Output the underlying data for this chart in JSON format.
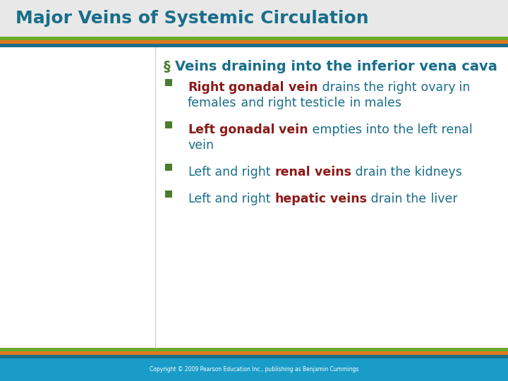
{
  "title": "Major Veins of Systemic Circulation",
  "title_color": "#1a6e8a",
  "title_fontsize": 18,
  "subtitle": "Veins draining into the inferior vena cava",
  "subtitle_color": "#4a7c2f",
  "bullet_color": "#4a7c2f",
  "background_color": "#ffffff",
  "title_bg_color": "#e8e8e8",
  "green_bar_color": "#6aaa2a",
  "orange_bar_color": "#e07820",
  "teal_bar_color": "#1a6e8a",
  "footer_bg": "#1a9cc8",
  "footer_text": "Copyright © 2009 Pearson Education Inc., publishing as Benjamin Cummings",
  "footer_text_color": "#ffffff",
  "bullet_items": [
    {
      "parts": [
        {
          "text": "Right gonadal vein",
          "color": "#8b1a1a",
          "bold": true
        },
        {
          "text": " drains the right ovary in females and right testicle in males",
          "color": "#1a6e8a",
          "bold": false
        }
      ]
    },
    {
      "parts": [
        {
          "text": "Left gonadal vein",
          "color": "#8b1a1a",
          "bold": true
        },
        {
          "text": " empties into the left renal vein",
          "color": "#1a6e8a",
          "bold": false
        }
      ]
    },
    {
      "parts": [
        {
          "text": "Left and right ",
          "color": "#1a6e8a",
          "bold": false
        },
        {
          "text": "renal veins",
          "color": "#8b1a1a",
          "bold": true
        },
        {
          "text": " drain the kidneys",
          "color": "#1a6e8a",
          "bold": false
        }
      ]
    },
    {
      "parts": [
        {
          "text": "Left and right ",
          "color": "#1a6e8a",
          "bold": false
        },
        {
          "text": "hepatic veins",
          "color": "#8b1a1a",
          "bold": true
        },
        {
          "text": " drain the liver",
          "color": "#1a6e8a",
          "bold": false
        }
      ]
    }
  ]
}
